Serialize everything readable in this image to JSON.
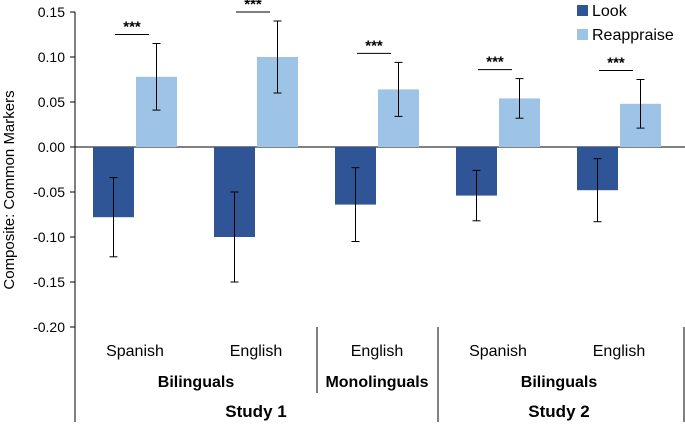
{
  "chart_data": {
    "type": "bar",
    "ylabel": "Composite: Common Markers",
    "ylim": [
      -0.2,
      0.15
    ],
    "yticks": [
      "0.15",
      "0.10",
      "0.05",
      "0.00",
      "-0.05",
      "-0.10",
      "-0.15",
      "-0.20"
    ],
    "ytick_values": [
      0.15,
      0.1,
      0.05,
      0.0,
      -0.05,
      -0.1,
      -0.15,
      -0.2
    ],
    "categories": [
      "Spanish",
      "English",
      "English",
      "Spanish",
      "English"
    ],
    "groups": [
      {
        "label": "Bilinguals",
        "categories": [
          0,
          1
        ]
      },
      {
        "label": "Monolinguals",
        "categories": [
          2
        ]
      },
      {
        "label": "Bilinguals",
        "categories": [
          3,
          4
        ]
      }
    ],
    "studies": [
      {
        "label": "Study 1",
        "categories": [
          0,
          1,
          2
        ]
      },
      {
        "label": "Study 2",
        "categories": [
          3,
          4
        ]
      }
    ],
    "series": [
      {
        "name": "Look",
        "color": "#2f5597",
        "values": [
          -0.078,
          -0.1,
          -0.064,
          -0.054,
          -0.048
        ],
        "err_low": [
          -0.122,
          -0.15,
          -0.105,
          -0.082,
          -0.083
        ],
        "err_high": [
          -0.034,
          -0.05,
          -0.023,
          -0.026,
          -0.013
        ]
      },
      {
        "name": "Reappraise",
        "color": "#9dc3e6",
        "values": [
          0.078,
          0.1,
          0.064,
          0.054,
          0.048
        ],
        "err_low": [
          0.041,
          0.06,
          0.034,
          0.032,
          0.021
        ],
        "err_high": [
          0.115,
          0.14,
          0.094,
          0.076,
          0.075
        ]
      }
    ],
    "significance": [
      "***",
      "***",
      "***",
      "***",
      "***"
    ],
    "legend_position": "top-right",
    "grid": false
  }
}
